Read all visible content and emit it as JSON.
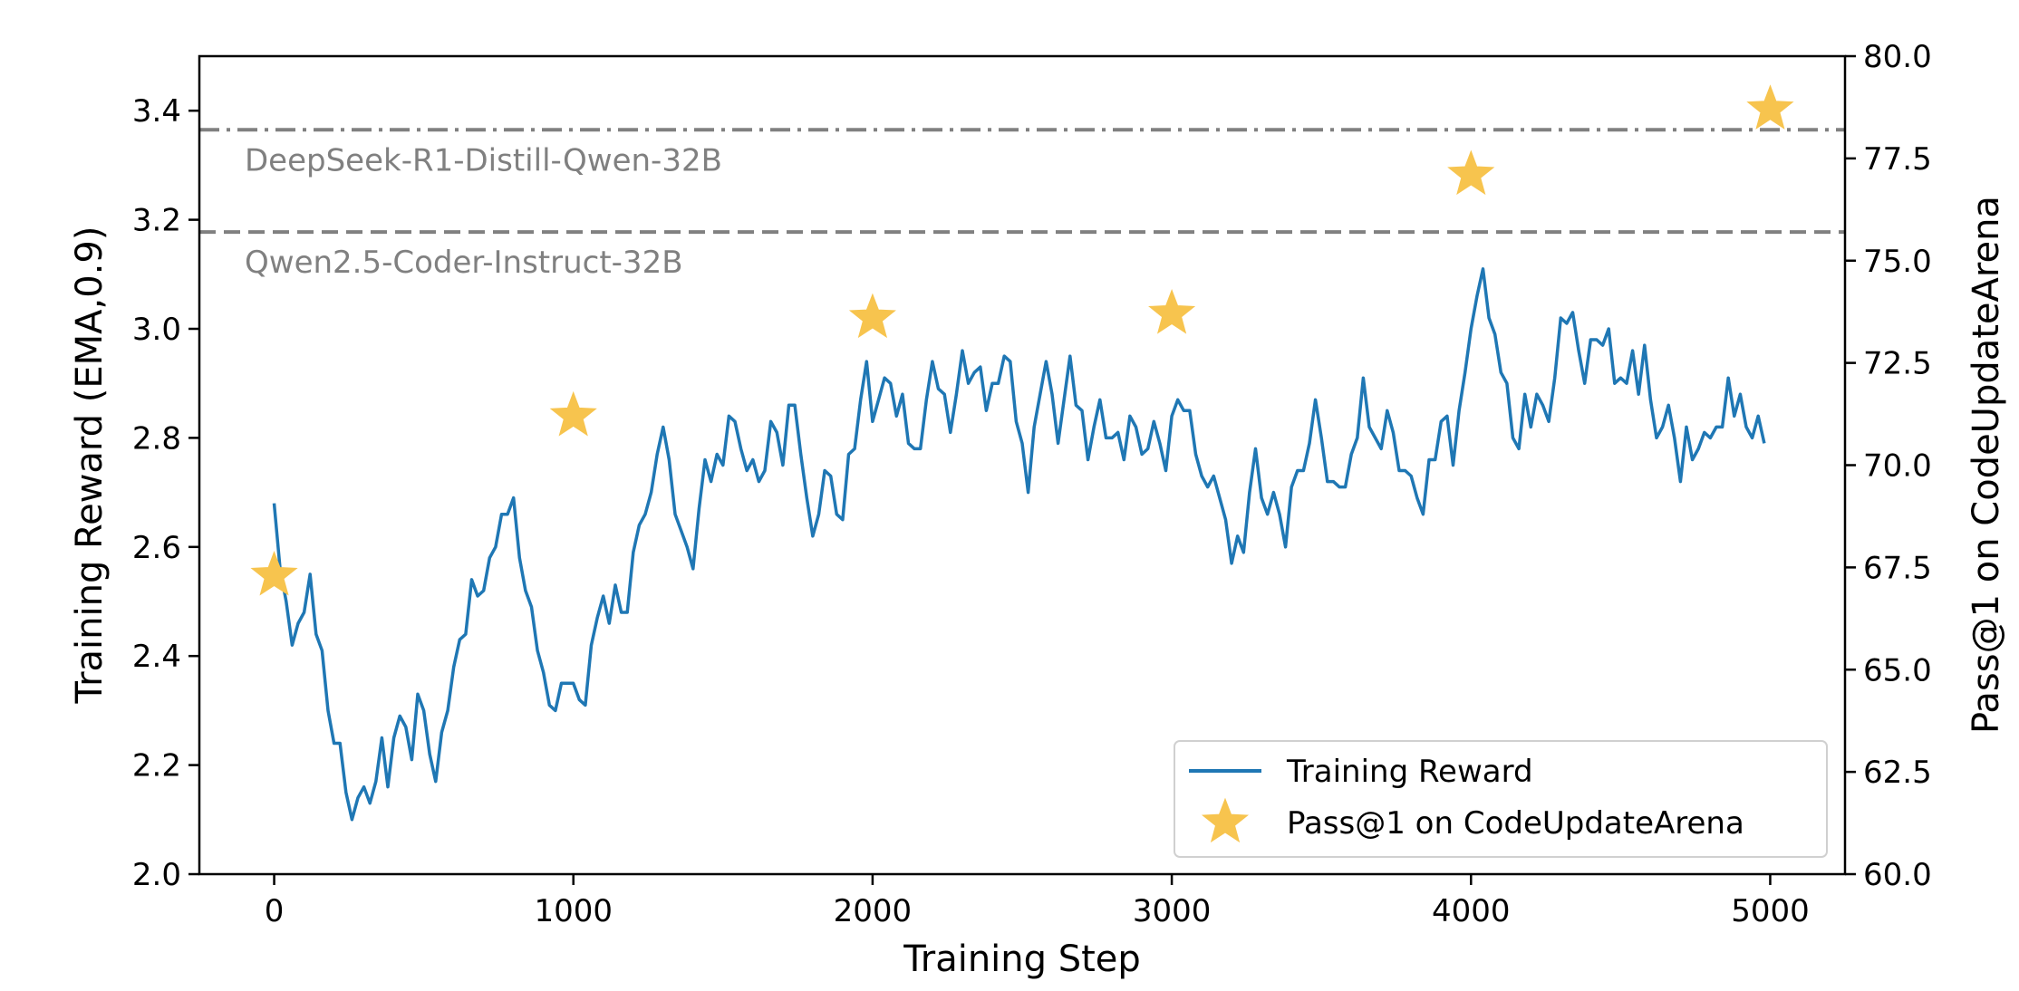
{
  "chart_data": {
    "type": "line",
    "xlabel": "Training Step",
    "ylabel_left": "Training Reward (EMA,0.9)",
    "ylabel_right": "Pass@1 on CodeUpdateArena",
    "xlim": [
      -250,
      5250
    ],
    "ylim_left": [
      2.0,
      3.5
    ],
    "ylim_right": [
      60.0,
      80.0
    ],
    "x_ticks": [
      0,
      1000,
      2000,
      3000,
      4000,
      5000
    ],
    "y_left_ticks": [
      "2.0",
      "2.2",
      "2.4",
      "2.6",
      "2.8",
      "3.0",
      "3.2",
      "3.4"
    ],
    "y_right_ticks": [
      "60.0",
      "62.5",
      "65.0",
      "67.5",
      "70.0",
      "72.5",
      "75.0",
      "77.5",
      "80.0"
    ],
    "grid": false,
    "legend_position": "lower-right",
    "reference_lines": [
      {
        "label": "DeepSeek-R1-Distill-Qwen-32B",
        "value": 78.2,
        "style": "dashdot",
        "color": "#808080"
      },
      {
        "label": "Qwen2.5-Coder-Instruct-32B",
        "value": 75.7,
        "style": "dashed",
        "color": "#808080"
      }
    ],
    "series": [
      {
        "name": "Training Reward",
        "axis": "left",
        "color": "#1f77b4",
        "x": [
          0,
          20,
          40,
          60,
          80,
          100,
          120,
          140,
          160,
          180,
          200,
          220,
          240,
          260,
          280,
          300,
          320,
          340,
          360,
          380,
          400,
          420,
          440,
          460,
          480,
          500,
          520,
          540,
          560,
          580,
          600,
          620,
          640,
          660,
          680,
          700,
          720,
          740,
          760,
          780,
          800,
          820,
          840,
          860,
          880,
          900,
          920,
          940,
          960,
          980,
          1000,
          1020,
          1040,
          1060,
          1080,
          1100,
          1120,
          1140,
          1160,
          1180,
          1200,
          1220,
          1240,
          1260,
          1280,
          1300,
          1320,
          1340,
          1360,
          1380,
          1400,
          1420,
          1440,
          1460,
          1480,
          1500,
          1520,
          1540,
          1560,
          1580,
          1600,
          1620,
          1640,
          1660,
          1680,
          1700,
          1720,
          1740,
          1760,
          1780,
          1800,
          1820,
          1840,
          1860,
          1880,
          1900,
          1920,
          1940,
          1960,
          1980,
          2000,
          2020,
          2040,
          2060,
          2080,
          2100,
          2120,
          2140,
          2160,
          2180,
          2200,
          2220,
          2240,
          2260,
          2280,
          2300,
          2320,
          2340,
          2360,
          2380,
          2400,
          2420,
          2440,
          2460,
          2480,
          2500,
          2520,
          2540,
          2560,
          2580,
          2600,
          2620,
          2640,
          2660,
          2680,
          2700,
          2720,
          2740,
          2760,
          2780,
          2800,
          2820,
          2840,
          2860,
          2880,
          2900,
          2920,
          2940,
          2960,
          2980,
          3000,
          3020,
          3040,
          3060,
          3080,
          3100,
          3120,
          3140,
          3160,
          3180,
          3200,
          3220,
          3240,
          3260,
          3280,
          3300,
          3320,
          3340,
          3360,
          3380,
          3400,
          3420,
          3440,
          3460,
          3480,
          3500,
          3520,
          3540,
          3560,
          3580,
          3600,
          3620,
          3640,
          3660,
          3680,
          3700,
          3720,
          3740,
          3760,
          3780,
          3800,
          3820,
          3840,
          3860,
          3880,
          3900,
          3920,
          3940,
          3960,
          3980,
          4000,
          4020,
          4040,
          4060,
          4080,
          4100,
          4120,
          4140,
          4160,
          4180,
          4200,
          4220,
          4240,
          4260,
          4280,
          4300,
          4320,
          4340,
          4360,
          4380,
          4400,
          4420,
          4440,
          4460,
          4480,
          4500,
          4520,
          4540,
          4560,
          4580,
          4600,
          4620,
          4640,
          4660,
          4680,
          4700,
          4720,
          4740,
          4760,
          4780,
          4800,
          4820,
          4840,
          4860,
          4880,
          4900,
          4920,
          4940,
          4960,
          4980
        ],
        "y": [
          2.68,
          2.56,
          2.5,
          2.42,
          2.46,
          2.48,
          2.55,
          2.44,
          2.41,
          2.3,
          2.24,
          2.24,
          2.15,
          2.1,
          2.14,
          2.16,
          2.13,
          2.17,
          2.25,
          2.16,
          2.25,
          2.29,
          2.27,
          2.21,
          2.33,
          2.3,
          2.22,
          2.17,
          2.26,
          2.3,
          2.38,
          2.43,
          2.44,
          2.54,
          2.51,
          2.52,
          2.58,
          2.6,
          2.66,
          2.66,
          2.69,
          2.58,
          2.52,
          2.49,
          2.41,
          2.37,
          2.31,
          2.3,
          2.35,
          2.35,
          2.35,
          2.32,
          2.31,
          2.42,
          2.47,
          2.51,
          2.46,
          2.53,
          2.48,
          2.48,
          2.59,
          2.64,
          2.66,
          2.7,
          2.77,
          2.82,
          2.76,
          2.66,
          2.63,
          2.6,
          2.56,
          2.67,
          2.76,
          2.72,
          2.77,
          2.75,
          2.84,
          2.83,
          2.78,
          2.74,
          2.76,
          2.72,
          2.74,
          2.83,
          2.81,
          2.75,
          2.86,
          2.86,
          2.77,
          2.69,
          2.62,
          2.66,
          2.74,
          2.73,
          2.66,
          2.65,
          2.77,
          2.78,
          2.87,
          2.94,
          2.83,
          2.87,
          2.91,
          2.9,
          2.84,
          2.88,
          2.79,
          2.78,
          2.78,
          2.87,
          2.94,
          2.89,
          2.88,
          2.81,
          2.88,
          2.96,
          2.9,
          2.92,
          2.93,
          2.85,
          2.9,
          2.9,
          2.95,
          2.94,
          2.83,
          2.79,
          2.7,
          2.82,
          2.88,
          2.94,
          2.88,
          2.79,
          2.87,
          2.95,
          2.86,
          2.85,
          2.76,
          2.82,
          2.87,
          2.8,
          2.8,
          2.81,
          2.76,
          2.84,
          2.82,
          2.77,
          2.78,
          2.83,
          2.79,
          2.74,
          2.84,
          2.87,
          2.85,
          2.85,
          2.77,
          2.73,
          2.71,
          2.73,
          2.69,
          2.65,
          2.57,
          2.62,
          2.59,
          2.7,
          2.78,
          2.69,
          2.66,
          2.7,
          2.66,
          2.6,
          2.71,
          2.74,
          2.74,
          2.79,
          2.87,
          2.8,
          2.72,
          2.72,
          2.71,
          2.71,
          2.77,
          2.8,
          2.91,
          2.82,
          2.8,
          2.78,
          2.85,
          2.81,
          2.74,
          2.74,
          2.73,
          2.69,
          2.66,
          2.76,
          2.76,
          2.83,
          2.84,
          2.75,
          2.85,
          2.92,
          3.0,
          3.06,
          3.11,
          3.02,
          2.99,
          2.92,
          2.9,
          2.8,
          2.78,
          2.88,
          2.82,
          2.88,
          2.86,
          2.83,
          2.91,
          3.02,
          3.01,
          3.03,
          2.96,
          2.9,
          2.98,
          2.98,
          2.97,
          3.0,
          2.9,
          2.91,
          2.9,
          2.96,
          2.88,
          2.97,
          2.87,
          2.8,
          2.82,
          2.86,
          2.8,
          2.72,
          2.82,
          2.76,
          2.78,
          2.81,
          2.8,
          2.82,
          2.82,
          2.91,
          2.84,
          2.88,
          2.82,
          2.8,
          2.84,
          2.79
        ]
      },
      {
        "name": "Pass@1 on CodeUpdateArena",
        "axis": "right",
        "color": "#f7c44e",
        "marker": "star",
        "x": [
          0,
          1000,
          2000,
          3000,
          4000,
          5000
        ],
        "y": [
          67.3,
          71.2,
          73.6,
          73.7,
          77.1,
          78.7
        ]
      }
    ]
  }
}
